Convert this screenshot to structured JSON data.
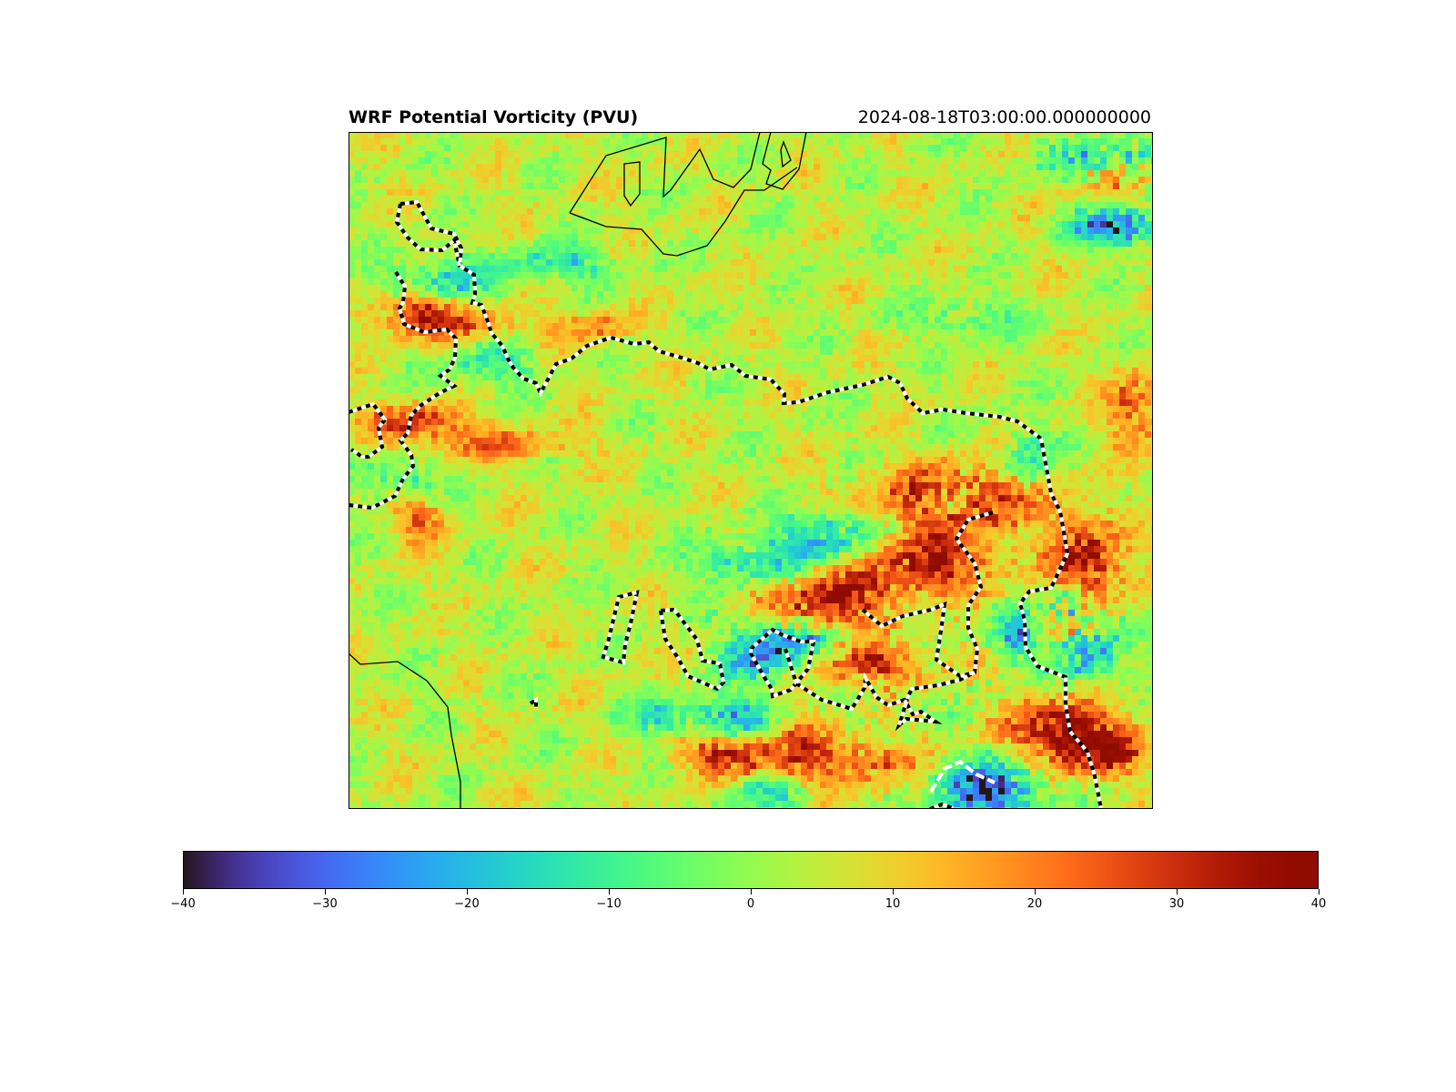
{
  "figure": {
    "title": "WRF Potential Vorticity (PVU)",
    "timestamp": "2024-08-18T03:00:00.000000000"
  },
  "colorbar": {
    "colormap": "turbo",
    "min": -40,
    "max": 40,
    "ticks": [
      "−40",
      "−30",
      "−20",
      "−10",
      "0",
      "10",
      "20",
      "30",
      "40"
    ]
  },
  "chart_data": {
    "type": "heatmap",
    "title": "WRF Potential Vorticity (PVU)",
    "subtitle": "2024-08-18T03:00:00.000000000",
    "value_range": [
      -40,
      40
    ],
    "colormap": "turbo",
    "grid": false,
    "overlays": [
      "coastlines (black solid)",
      "contour (black and white dashed)"
    ]
  }
}
